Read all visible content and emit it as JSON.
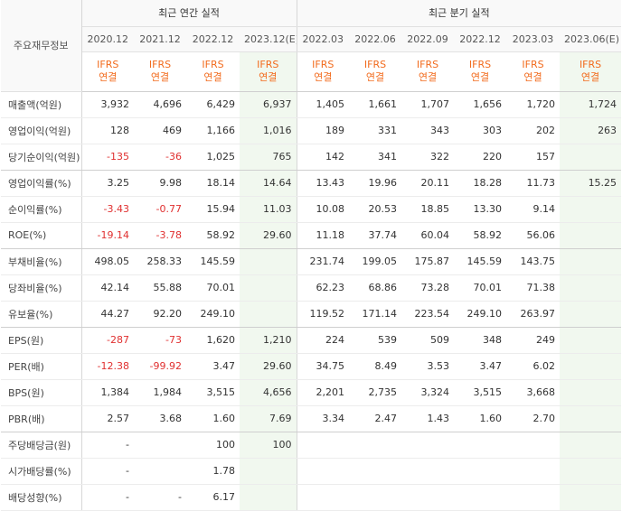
{
  "header": {
    "title": "주요재무정보",
    "annual_group": "최근 연간 실적",
    "quarter_group": "최근 분기 실적",
    "ifrs_label": "IFRS",
    "basis_label": "연결",
    "annual_periods": [
      "2020.12",
      "2021.12",
      "2022.12",
      "2023.12(E)"
    ],
    "quarter_periods": [
      "2022.03",
      "2022.06",
      "2022.09",
      "2022.12",
      "2023.03",
      "2023.06(E)"
    ]
  },
  "rows": [
    {
      "label": "매출액(억원)",
      "values": [
        "3,932",
        "4,696",
        "6,429",
        "6,937",
        "1,405",
        "1,661",
        "1,707",
        "1,656",
        "1,720",
        "1,724"
      ]
    },
    {
      "label": "영업이익(억원)",
      "values": [
        "128",
        "469",
        "1,166",
        "1,016",
        "189",
        "331",
        "343",
        "303",
        "202",
        "263"
      ]
    },
    {
      "label": "당기순이익(억원)",
      "values": [
        "-135",
        "-36",
        "1,025",
        "765",
        "142",
        "341",
        "322",
        "220",
        "157",
        ""
      ]
    },
    {
      "label": "영업이익률(%)",
      "values": [
        "3.25",
        "9.98",
        "18.14",
        "14.64",
        "13.43",
        "19.96",
        "20.11",
        "18.28",
        "11.73",
        "15.25"
      ]
    },
    {
      "label": "순이익률(%)",
      "values": [
        "-3.43",
        "-0.77",
        "15.94",
        "11.03",
        "10.08",
        "20.53",
        "18.85",
        "13.30",
        "9.14",
        ""
      ]
    },
    {
      "label": "ROE(%)",
      "values": [
        "-19.14",
        "-3.78",
        "58.92",
        "29.60",
        "11.18",
        "37.74",
        "60.04",
        "58.92",
        "56.06",
        ""
      ]
    },
    {
      "label": "부채비율(%)",
      "values": [
        "498.05",
        "258.33",
        "145.59",
        "",
        "231.74",
        "199.05",
        "175.87",
        "145.59",
        "143.75",
        ""
      ]
    },
    {
      "label": "당좌비율(%)",
      "values": [
        "42.14",
        "55.88",
        "70.01",
        "",
        "62.23",
        "68.86",
        "73.28",
        "70.01",
        "71.38",
        ""
      ]
    },
    {
      "label": "유보율(%)",
      "values": [
        "44.27",
        "92.20",
        "249.10",
        "",
        "119.52",
        "171.14",
        "223.54",
        "249.10",
        "263.97",
        ""
      ]
    },
    {
      "label": "EPS(원)",
      "values": [
        "-287",
        "-73",
        "1,620",
        "1,210",
        "224",
        "539",
        "509",
        "348",
        "249",
        ""
      ]
    },
    {
      "label": "PER(배)",
      "values": [
        "-12.38",
        "-99.92",
        "3.47",
        "29.60",
        "34.75",
        "8.49",
        "3.53",
        "3.47",
        "6.02",
        ""
      ]
    },
    {
      "label": "BPS(원)",
      "values": [
        "1,384",
        "1,984",
        "3,515",
        "4,656",
        "2,201",
        "2,735",
        "3,324",
        "3,515",
        "3,668",
        ""
      ]
    },
    {
      "label": "PBR(배)",
      "values": [
        "2.57",
        "3.68",
        "1.60",
        "7.69",
        "3.34",
        "2.47",
        "1.43",
        "1.60",
        "2.70",
        ""
      ]
    },
    {
      "label": "주당배당금(원)",
      "values": [
        "-",
        "",
        "100",
        "100",
        "",
        "",
        "",
        "",
        "",
        ""
      ]
    },
    {
      "label": "시가배당률(%)",
      "values": [
        "-",
        "",
        "1.78",
        "",
        "",
        "",
        "",
        "",
        "",
        ""
      ]
    },
    {
      "label": "배당성향(%)",
      "values": [
        "-",
        "-",
        "6.17",
        "",
        "",
        "",
        "",
        "",
        "",
        ""
      ]
    }
  ],
  "colors": {
    "negative": "#e03030",
    "ifrs": "#f26b1d",
    "estimate_bg": "#f1f8ef"
  }
}
